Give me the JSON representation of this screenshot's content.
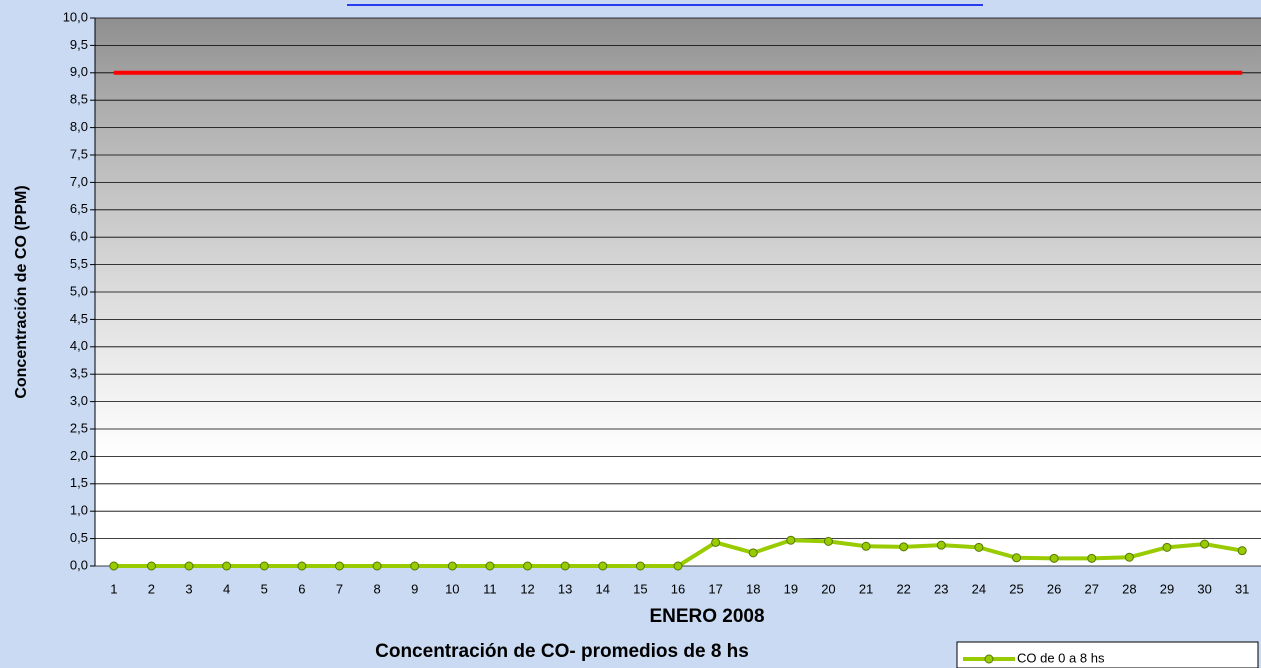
{
  "chart_data": {
    "type": "line",
    "title": "Concentración de CO- promedios de 8 hs",
    "x_label": "ENERO 2008",
    "y_label": "Concentración de CO (PPM)",
    "categories": [
      "1",
      "2",
      "3",
      "4",
      "5",
      "6",
      "7",
      "8",
      "9",
      "10",
      "11",
      "12",
      "13",
      "14",
      "15",
      "16",
      "17",
      "18",
      "19",
      "20",
      "21",
      "22",
      "23",
      "24",
      "25",
      "26",
      "27",
      "28",
      "29",
      "30",
      "31"
    ],
    "series": [
      {
        "name": "CO de 0 a 8 hs",
        "color": "#99cc00",
        "values": [
          0,
          0,
          0,
          0,
          0,
          0,
          0,
          0,
          0,
          0,
          0,
          0,
          0,
          0,
          0,
          0,
          0.43,
          0.24,
          0.47,
          0.45,
          0.36,
          0.35,
          0.38,
          0.34,
          0.15,
          0.14,
          0.14,
          0.16,
          0.34,
          0.4,
          0.28
        ]
      },
      {
        "color": "#ff0000",
        "values": [
          9,
          9,
          9,
          9,
          9,
          9,
          9,
          9,
          9,
          9,
          9,
          9,
          9,
          9,
          9,
          9,
          9,
          9,
          9,
          9,
          9,
          9,
          9,
          9,
          9,
          9,
          9,
          9,
          9,
          9,
          9
        ]
      }
    ],
    "ylim": [
      0,
      10
    ],
    "yticks": [
      {
        "value": 0,
        "label": "0,0"
      },
      {
        "value": 0.5,
        "label": "0,5"
      },
      {
        "value": 1,
        "label": "1,0"
      },
      {
        "value": 1.5,
        "label": "1,5"
      },
      {
        "value": 2,
        "label": "2,0"
      },
      {
        "value": 2.5,
        "label": "2,5"
      },
      {
        "value": 3,
        "label": "3,0"
      },
      {
        "value": 3.5,
        "label": "3,5"
      },
      {
        "value": 4,
        "label": "4,0"
      },
      {
        "value": 4.5,
        "label": "4,5"
      },
      {
        "value": 5,
        "label": "5,0"
      },
      {
        "value": 5.5,
        "label": "5,5"
      },
      {
        "value": 6,
        "label": "6,0"
      },
      {
        "value": 6.5,
        "label": "6,5"
      },
      {
        "value": 7,
        "label": "7,0"
      },
      {
        "value": 7.5,
        "label": "7,5"
      },
      {
        "value": 8,
        "label": "8,0"
      },
      {
        "value": 8.5,
        "label": "8,5"
      },
      {
        "value": 9,
        "label": "9,0"
      },
      {
        "value": 9.5,
        "label": "9,5"
      },
      {
        "value": 10,
        "label": "10,0"
      }
    ],
    "grid": true
  }
}
